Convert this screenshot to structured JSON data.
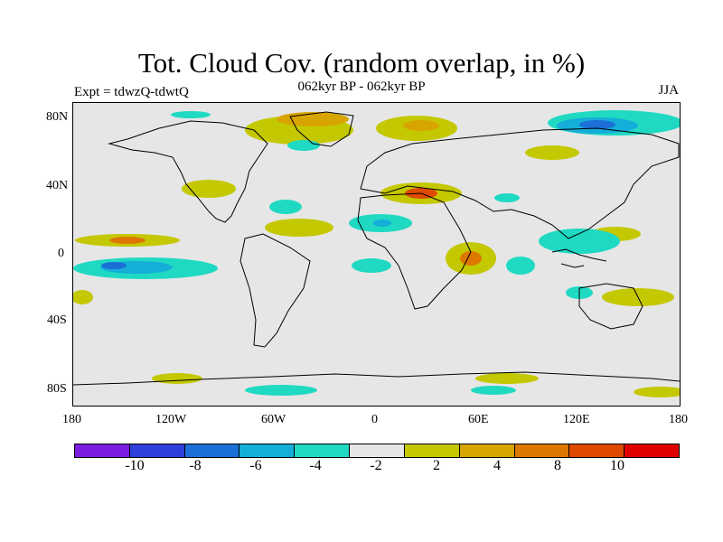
{
  "header": {
    "title": "Tot. Cloud Cov. (random overlap, in %)",
    "subtitle": "062kyr BP - 062kyr BP",
    "experiment": "Expt = tdwzQ-tdwtQ",
    "season": "JJA"
  },
  "map": {
    "projection": "cylindrical-equidistant",
    "lat_range": [
      -90,
      90
    ],
    "lon_range": [
      -180,
      180
    ],
    "lat_ticks": [
      "80N",
      "40N",
      "0",
      "40S",
      "80S"
    ],
    "lon_ticks": [
      "180",
      "120W",
      "60W",
      "0",
      "60E",
      "120E",
      "180"
    ],
    "background_color": "#e6e6e6",
    "coastline_color": "#000000"
  },
  "colorbar": {
    "colors": [
      "#7a1de0",
      "#2e3fdb",
      "#1c6fd6",
      "#14aed9",
      "#1fd9c3",
      "#e6e6e6",
      "#c4c800",
      "#d8a400",
      "#dc7800",
      "#dd4a00",
      "#e00000"
    ],
    "labels": [
      "-10",
      "-8",
      "-6",
      "-4",
      "-2",
      "2",
      "4",
      "8",
      "10"
    ]
  },
  "anomalies": [
    {
      "region": "Arctic Siberia",
      "lat": 75,
      "lon": 100,
      "level": "-6"
    },
    {
      "region": "Arctic Canada",
      "lat": 75,
      "lon": -80,
      "level": "4"
    },
    {
      "region": "Eastern Mediterranean",
      "lat": 35,
      "lon": 30,
      "level": "8"
    },
    {
      "region": "East Africa",
      "lat": 0,
      "lon": 40,
      "level": "8"
    },
    {
      "region": "Tropical East Pacific",
      "lat": 0,
      "lon": -140,
      "level": "-8"
    },
    {
      "region": "Tropical Pacific north",
      "lat": 10,
      "lon": -160,
      "level": "4"
    },
    {
      "region": "Sahara",
      "lat": 18,
      "lon": 0,
      "level": "-4"
    },
    {
      "region": "Maritime Continent",
      "lat": 8,
      "lon": 120,
      "level": "-4"
    },
    {
      "region": "Southern Ocean",
      "lat": -78,
      "lon": -30,
      "level": "-4"
    }
  ]
}
